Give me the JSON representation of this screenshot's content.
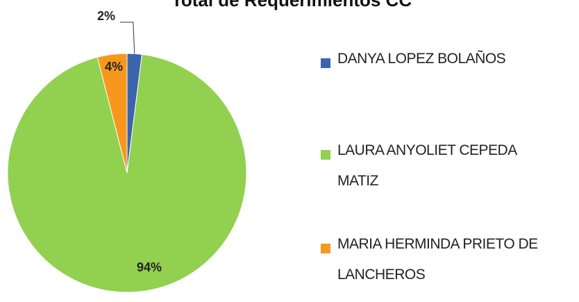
{
  "chart_data": {
    "type": "pie",
    "title": "Total de Requerimientos CC",
    "categories": [
      "DANYA LOPEZ BOLAÑOS",
      "LAURA ANYOLIET CEPEDA MATIZ",
      "MARIA HERMINDA PRIETO DE LANCHEROS"
    ],
    "values": [
      2,
      94,
      4
    ],
    "value_labels": [
      "2%",
      "94%",
      "4%"
    ],
    "colors": [
      "#3b64ad",
      "#92d050",
      "#f7981d"
    ],
    "legend": "right"
  }
}
